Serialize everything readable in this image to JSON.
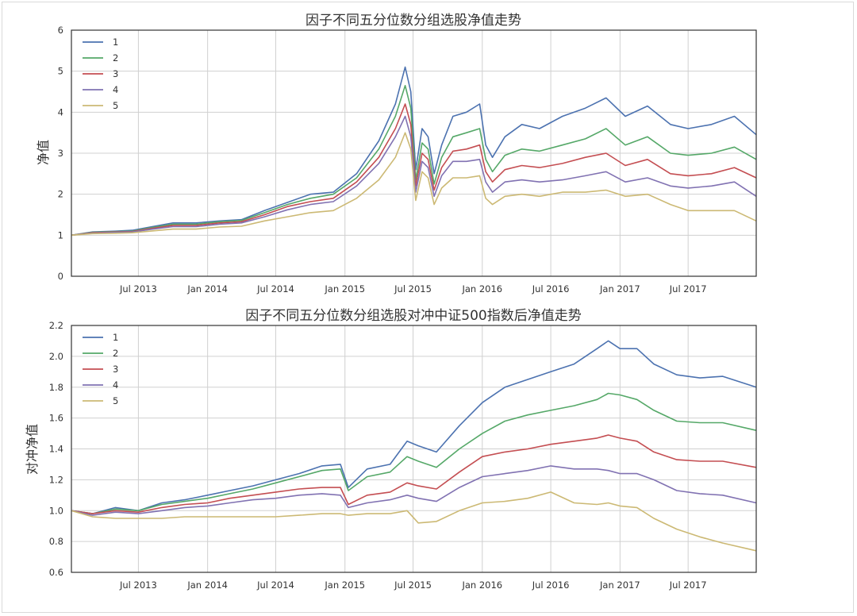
{
  "chart_data": [
    {
      "type": "line",
      "title": "因子不同五分位数分组选股净值走势",
      "xlabel": "",
      "ylabel": "净值",
      "xlim": [
        "2013-01-04",
        "2017-12-29"
      ],
      "ylim": [
        0,
        6
      ],
      "yticks": [
        "0",
        "1",
        "2",
        "3",
        "4",
        "5",
        "6"
      ],
      "xticks": [
        {
          "date": "2013-07-01",
          "label": "Jul 2013"
        },
        {
          "date": "2014-01-01",
          "label": "Jan 2014"
        },
        {
          "date": "2014-07-01",
          "label": "Jul 2014"
        },
        {
          "date": "2015-01-01",
          "label": "Jan 2015"
        },
        {
          "date": "2015-07-01",
          "label": "Jul 2015"
        },
        {
          "date": "2016-01-01",
          "label": "Jan 2016"
        },
        {
          "date": "2016-07-01",
          "label": "Jul 2016"
        },
        {
          "date": "2017-01-01",
          "label": "Jan 2017"
        },
        {
          "date": "2017-07-01",
          "label": "Jul 2017"
        }
      ],
      "grid": true,
      "legend_position": "top-left",
      "x": [
        "2013-01-04",
        "2013-03-01",
        "2013-05-01",
        "2013-06-15",
        "2013-08-01",
        "2013-10-01",
        "2013-12-01",
        "2014-02-01",
        "2014-04-01",
        "2014-06-01",
        "2014-08-01",
        "2014-10-01",
        "2014-12-01",
        "2015-02-01",
        "2015-04-01",
        "2015-05-15",
        "2015-06-10",
        "2015-06-25",
        "2015-07-08",
        "2015-07-25",
        "2015-08-10",
        "2015-08-26",
        "2015-09-15",
        "2015-10-15",
        "2015-11-20",
        "2015-12-25",
        "2016-01-10",
        "2016-01-28",
        "2016-03-01",
        "2016-04-15",
        "2016-06-01",
        "2016-08-01",
        "2016-10-01",
        "2016-11-25",
        "2017-01-15",
        "2017-03-15",
        "2017-05-15",
        "2017-07-01",
        "2017-09-01",
        "2017-11-01",
        "2017-12-29"
      ],
      "series": [
        {
          "name": "1",
          "color": "#4c72b0",
          "values": [
            1.0,
            1.08,
            1.1,
            1.12,
            1.2,
            1.3,
            1.3,
            1.35,
            1.38,
            1.6,
            1.8,
            2.0,
            2.05,
            2.5,
            3.3,
            4.2,
            5.1,
            4.5,
            2.6,
            3.6,
            3.4,
            2.5,
            3.2,
            3.9,
            4.0,
            4.2,
            3.2,
            2.9,
            3.4,
            3.7,
            3.6,
            3.9,
            4.1,
            4.35,
            3.9,
            4.15,
            3.7,
            3.6,
            3.7,
            3.9,
            3.45
          ]
        },
        {
          "name": "2",
          "color": "#55a868",
          "values": [
            1.0,
            1.07,
            1.09,
            1.1,
            1.18,
            1.27,
            1.27,
            1.33,
            1.36,
            1.55,
            1.75,
            1.9,
            2.0,
            2.4,
            3.1,
            3.9,
            4.65,
            4.1,
            2.35,
            3.25,
            3.1,
            2.25,
            2.9,
            3.4,
            3.5,
            3.6,
            2.85,
            2.55,
            2.95,
            3.1,
            3.05,
            3.2,
            3.35,
            3.6,
            3.2,
            3.4,
            3.0,
            2.95,
            3.0,
            3.15,
            2.85
          ]
        },
        {
          "name": "3",
          "color": "#c44e52",
          "values": [
            1.0,
            1.06,
            1.08,
            1.09,
            1.16,
            1.24,
            1.24,
            1.3,
            1.33,
            1.5,
            1.7,
            1.82,
            1.9,
            2.3,
            2.9,
            3.6,
            4.2,
            3.7,
            2.2,
            3.0,
            2.85,
            2.1,
            2.65,
            3.05,
            3.1,
            3.2,
            2.55,
            2.3,
            2.6,
            2.7,
            2.65,
            2.75,
            2.9,
            3.0,
            2.7,
            2.85,
            2.5,
            2.45,
            2.5,
            2.65,
            2.4
          ]
        },
        {
          "name": "4",
          "color": "#8172b2",
          "values": [
            1.0,
            1.05,
            1.07,
            1.08,
            1.14,
            1.21,
            1.21,
            1.27,
            1.3,
            1.45,
            1.62,
            1.75,
            1.82,
            2.2,
            2.75,
            3.4,
            3.9,
            3.4,
            2.05,
            2.8,
            2.65,
            1.95,
            2.45,
            2.8,
            2.8,
            2.85,
            2.3,
            2.05,
            2.3,
            2.35,
            2.3,
            2.35,
            2.45,
            2.55,
            2.3,
            2.4,
            2.2,
            2.15,
            2.2,
            2.3,
            1.95
          ]
        },
        {
          "name": "5",
          "color": "#ccb974",
          "values": [
            1.0,
            1.04,
            1.05,
            1.06,
            1.1,
            1.15,
            1.15,
            1.2,
            1.22,
            1.35,
            1.45,
            1.55,
            1.6,
            1.9,
            2.35,
            2.9,
            3.5,
            3.1,
            1.85,
            2.55,
            2.4,
            1.75,
            2.15,
            2.4,
            2.4,
            2.45,
            1.9,
            1.75,
            1.95,
            2.0,
            1.95,
            2.05,
            2.05,
            2.1,
            1.95,
            2.0,
            1.75,
            1.6,
            1.6,
            1.6,
            1.35
          ]
        }
      ]
    },
    {
      "type": "line",
      "title": "因子不同五分位数分组选股对冲中证500指数后净值走势",
      "xlabel": "",
      "ylabel": "对冲净值",
      "xlim": [
        "2013-01-04",
        "2017-12-29"
      ],
      "ylim": [
        0.6,
        2.2
      ],
      "yticks": [
        "0.6",
        "0.8",
        "1.0",
        "1.2",
        "1.4",
        "1.6",
        "1.8",
        "2.0",
        "2.2"
      ],
      "xticks": [
        {
          "date": "2013-07-01",
          "label": "Jul 2013"
        },
        {
          "date": "2014-01-01",
          "label": "Jan 2014"
        },
        {
          "date": "2014-07-01",
          "label": "Jul 2014"
        },
        {
          "date": "2015-01-01",
          "label": "Jan 2015"
        },
        {
          "date": "2015-07-01",
          "label": "Jul 2015"
        },
        {
          "date": "2016-01-01",
          "label": "Jan 2016"
        },
        {
          "date": "2016-07-01",
          "label": "Jul 2016"
        },
        {
          "date": "2017-01-01",
          "label": "Jan 2017"
        },
        {
          "date": "2017-07-01",
          "label": "Jul 2017"
        }
      ],
      "grid": true,
      "legend_position": "top-left",
      "x": [
        "2013-01-04",
        "2013-03-01",
        "2013-05-01",
        "2013-07-01",
        "2013-09-01",
        "2013-11-01",
        "2014-01-01",
        "2014-03-01",
        "2014-05-01",
        "2014-07-01",
        "2014-09-01",
        "2014-11-01",
        "2014-12-20",
        "2015-01-10",
        "2015-03-01",
        "2015-05-01",
        "2015-06-15",
        "2015-07-15",
        "2015-09-01",
        "2015-11-01",
        "2016-01-01",
        "2016-03-01",
        "2016-05-01",
        "2016-07-01",
        "2016-09-01",
        "2016-11-01",
        "2016-12-01",
        "2017-01-01",
        "2017-02-15",
        "2017-04-01",
        "2017-06-01",
        "2017-08-01",
        "2017-10-01",
        "2017-12-29"
      ],
      "series": [
        {
          "name": "1",
          "color": "#4c72b0",
          "values": [
            1.0,
            0.98,
            1.02,
            1.0,
            1.05,
            1.07,
            1.1,
            1.13,
            1.16,
            1.2,
            1.24,
            1.29,
            1.3,
            1.15,
            1.27,
            1.3,
            1.45,
            1.42,
            1.38,
            1.55,
            1.7,
            1.8,
            1.85,
            1.9,
            1.95,
            2.05,
            2.1,
            2.05,
            2.05,
            1.95,
            1.88,
            1.86,
            1.87,
            1.8
          ]
        },
        {
          "name": "2",
          "color": "#55a868",
          "values": [
            1.0,
            0.98,
            1.01,
            1.0,
            1.04,
            1.06,
            1.08,
            1.11,
            1.14,
            1.18,
            1.22,
            1.26,
            1.27,
            1.13,
            1.22,
            1.25,
            1.35,
            1.32,
            1.28,
            1.4,
            1.5,
            1.58,
            1.62,
            1.65,
            1.68,
            1.72,
            1.76,
            1.75,
            1.72,
            1.65,
            1.58,
            1.57,
            1.57,
            1.52
          ]
        },
        {
          "name": "3",
          "color": "#c44e52",
          "values": [
            1.0,
            0.98,
            1.0,
            0.99,
            1.02,
            1.04,
            1.05,
            1.08,
            1.1,
            1.12,
            1.14,
            1.15,
            1.15,
            1.04,
            1.1,
            1.12,
            1.18,
            1.16,
            1.14,
            1.25,
            1.35,
            1.38,
            1.4,
            1.43,
            1.45,
            1.47,
            1.49,
            1.47,
            1.45,
            1.38,
            1.33,
            1.32,
            1.32,
            1.28
          ]
        },
        {
          "name": "4",
          "color": "#8172b2",
          "values": [
            1.0,
            0.97,
            0.99,
            0.98,
            1.0,
            1.02,
            1.03,
            1.05,
            1.07,
            1.08,
            1.1,
            1.11,
            1.1,
            1.02,
            1.05,
            1.07,
            1.1,
            1.08,
            1.06,
            1.15,
            1.22,
            1.24,
            1.26,
            1.29,
            1.27,
            1.27,
            1.26,
            1.24,
            1.24,
            1.2,
            1.13,
            1.11,
            1.1,
            1.05
          ]
        },
        {
          "name": "5",
          "color": "#ccb974",
          "values": [
            1.0,
            0.96,
            0.95,
            0.95,
            0.95,
            0.96,
            0.96,
            0.96,
            0.96,
            0.96,
            0.97,
            0.98,
            0.98,
            0.97,
            0.98,
            0.98,
            1.0,
            0.92,
            0.93,
            1.0,
            1.05,
            1.06,
            1.08,
            1.12,
            1.05,
            1.04,
            1.05,
            1.03,
            1.02,
            0.95,
            0.88,
            0.83,
            0.79,
            0.74
          ]
        }
      ]
    }
  ]
}
